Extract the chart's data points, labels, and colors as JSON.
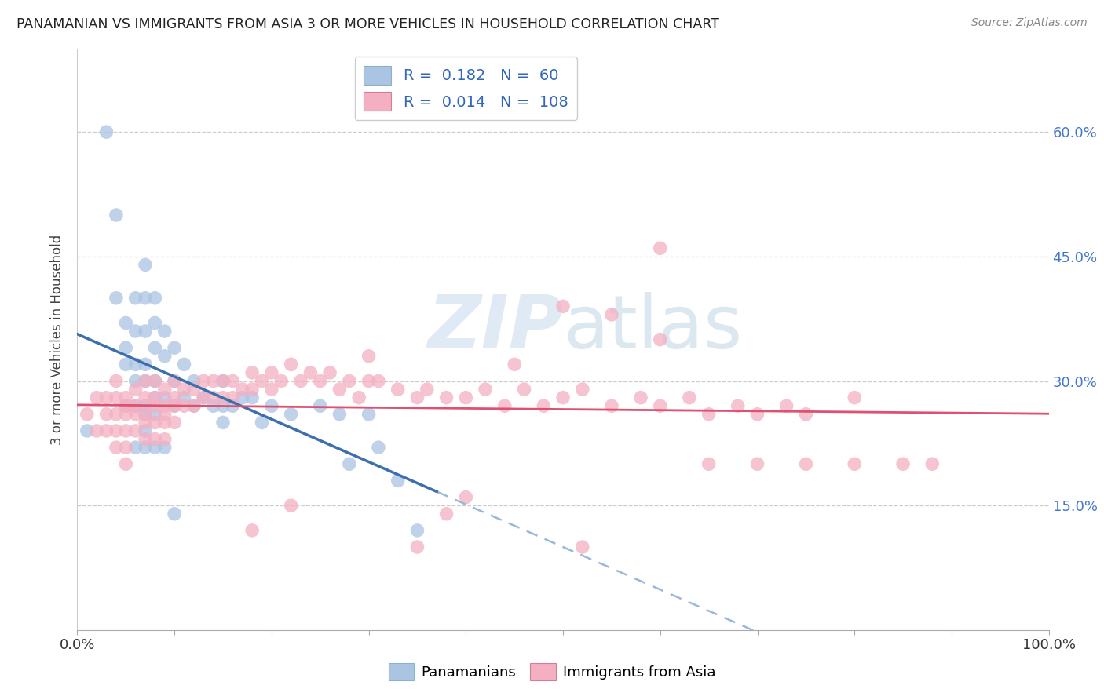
{
  "title": "PANAMANIAN VS IMMIGRANTS FROM ASIA 3 OR MORE VEHICLES IN HOUSEHOLD CORRELATION CHART",
  "source": "Source: ZipAtlas.com",
  "ylabel": "3 or more Vehicles in Household",
  "legend_label1": "Panamanians",
  "legend_label2": "Immigrants from Asia",
  "R1": 0.182,
  "N1": 60,
  "R2": 0.014,
  "N2": 108,
  "color1": "#aac4e2",
  "color2": "#f4afc2",
  "line_color1": "#3d6fad",
  "line_color2": "#e05070",
  "dash_color": "#9ab8d8",
  "background_color": "#ffffff",
  "xlim": [
    0.0,
    1.0
  ],
  "ylim": [
    0.0,
    0.7
  ],
  "ytick_vals": [
    0.15,
    0.3,
    0.45,
    0.6
  ],
  "ytick_labels": [
    "15.0%",
    "30.0%",
    "45.0%",
    "60.0%"
  ],
  "pan_x": [
    0.01,
    0.03,
    0.04,
    0.04,
    0.05,
    0.05,
    0.05,
    0.05,
    0.06,
    0.06,
    0.06,
    0.06,
    0.06,
    0.07,
    0.07,
    0.07,
    0.07,
    0.07,
    0.07,
    0.07,
    0.07,
    0.08,
    0.08,
    0.08,
    0.08,
    0.08,
    0.08,
    0.09,
    0.09,
    0.09,
    0.1,
    0.1,
    0.1,
    0.11,
    0.11,
    0.12,
    0.12,
    0.13,
    0.14,
    0.15,
    0.15,
    0.15,
    0.16,
    0.17,
    0.18,
    0.19,
    0.2,
    0.22,
    0.25,
    0.27,
    0.28,
    0.3,
    0.31,
    0.33,
    0.35,
    0.1,
    0.08,
    0.09,
    0.06,
    0.07
  ],
  "pan_y": [
    0.24,
    0.6,
    0.5,
    0.4,
    0.37,
    0.34,
    0.32,
    0.27,
    0.4,
    0.36,
    0.32,
    0.3,
    0.27,
    0.44,
    0.4,
    0.36,
    0.32,
    0.3,
    0.27,
    0.26,
    0.24,
    0.4,
    0.37,
    0.34,
    0.3,
    0.28,
    0.26,
    0.36,
    0.33,
    0.28,
    0.34,
    0.3,
    0.27,
    0.32,
    0.28,
    0.3,
    0.27,
    0.28,
    0.27,
    0.3,
    0.27,
    0.25,
    0.27,
    0.28,
    0.28,
    0.25,
    0.27,
    0.26,
    0.27,
    0.26,
    0.2,
    0.26,
    0.22,
    0.18,
    0.12,
    0.14,
    0.22,
    0.22,
    0.22,
    0.22
  ],
  "asia_x": [
    0.01,
    0.02,
    0.02,
    0.03,
    0.03,
    0.03,
    0.04,
    0.04,
    0.04,
    0.04,
    0.04,
    0.05,
    0.05,
    0.05,
    0.05,
    0.05,
    0.05,
    0.06,
    0.06,
    0.06,
    0.06,
    0.07,
    0.07,
    0.07,
    0.07,
    0.07,
    0.08,
    0.08,
    0.08,
    0.08,
    0.08,
    0.09,
    0.09,
    0.09,
    0.09,
    0.09,
    0.1,
    0.1,
    0.1,
    0.1,
    0.11,
    0.11,
    0.12,
    0.12,
    0.13,
    0.13,
    0.14,
    0.14,
    0.15,
    0.15,
    0.16,
    0.16,
    0.17,
    0.18,
    0.18,
    0.19,
    0.2,
    0.2,
    0.21,
    0.22,
    0.23,
    0.24,
    0.25,
    0.26,
    0.27,
    0.28,
    0.29,
    0.3,
    0.31,
    0.33,
    0.35,
    0.36,
    0.38,
    0.4,
    0.42,
    0.44,
    0.46,
    0.48,
    0.5,
    0.52,
    0.55,
    0.58,
    0.6,
    0.63,
    0.65,
    0.68,
    0.7,
    0.73,
    0.75,
    0.8,
    0.55,
    0.6,
    0.65,
    0.7,
    0.75,
    0.8,
    0.85,
    0.88,
    0.6,
    0.5,
    0.45,
    0.3,
    0.4,
    0.38,
    0.18,
    0.52,
    0.35,
    0.22
  ],
  "asia_y": [
    0.26,
    0.28,
    0.24,
    0.28,
    0.26,
    0.24,
    0.3,
    0.28,
    0.26,
    0.24,
    0.22,
    0.28,
    0.27,
    0.26,
    0.24,
    0.22,
    0.2,
    0.29,
    0.27,
    0.26,
    0.24,
    0.3,
    0.28,
    0.26,
    0.25,
    0.23,
    0.3,
    0.28,
    0.27,
    0.25,
    0.23,
    0.29,
    0.27,
    0.26,
    0.25,
    0.23,
    0.3,
    0.28,
    0.27,
    0.25,
    0.29,
    0.27,
    0.29,
    0.27,
    0.3,
    0.28,
    0.3,
    0.28,
    0.3,
    0.28,
    0.3,
    0.28,
    0.29,
    0.31,
    0.29,
    0.3,
    0.31,
    0.29,
    0.3,
    0.32,
    0.3,
    0.31,
    0.3,
    0.31,
    0.29,
    0.3,
    0.28,
    0.3,
    0.3,
    0.29,
    0.28,
    0.29,
    0.28,
    0.28,
    0.29,
    0.27,
    0.29,
    0.27,
    0.28,
    0.29,
    0.27,
    0.28,
    0.27,
    0.28,
    0.26,
    0.27,
    0.26,
    0.27,
    0.26,
    0.28,
    0.38,
    0.35,
    0.2,
    0.2,
    0.2,
    0.2,
    0.2,
    0.2,
    0.46,
    0.39,
    0.32,
    0.33,
    0.16,
    0.14,
    0.12,
    0.1,
    0.1,
    0.15
  ]
}
